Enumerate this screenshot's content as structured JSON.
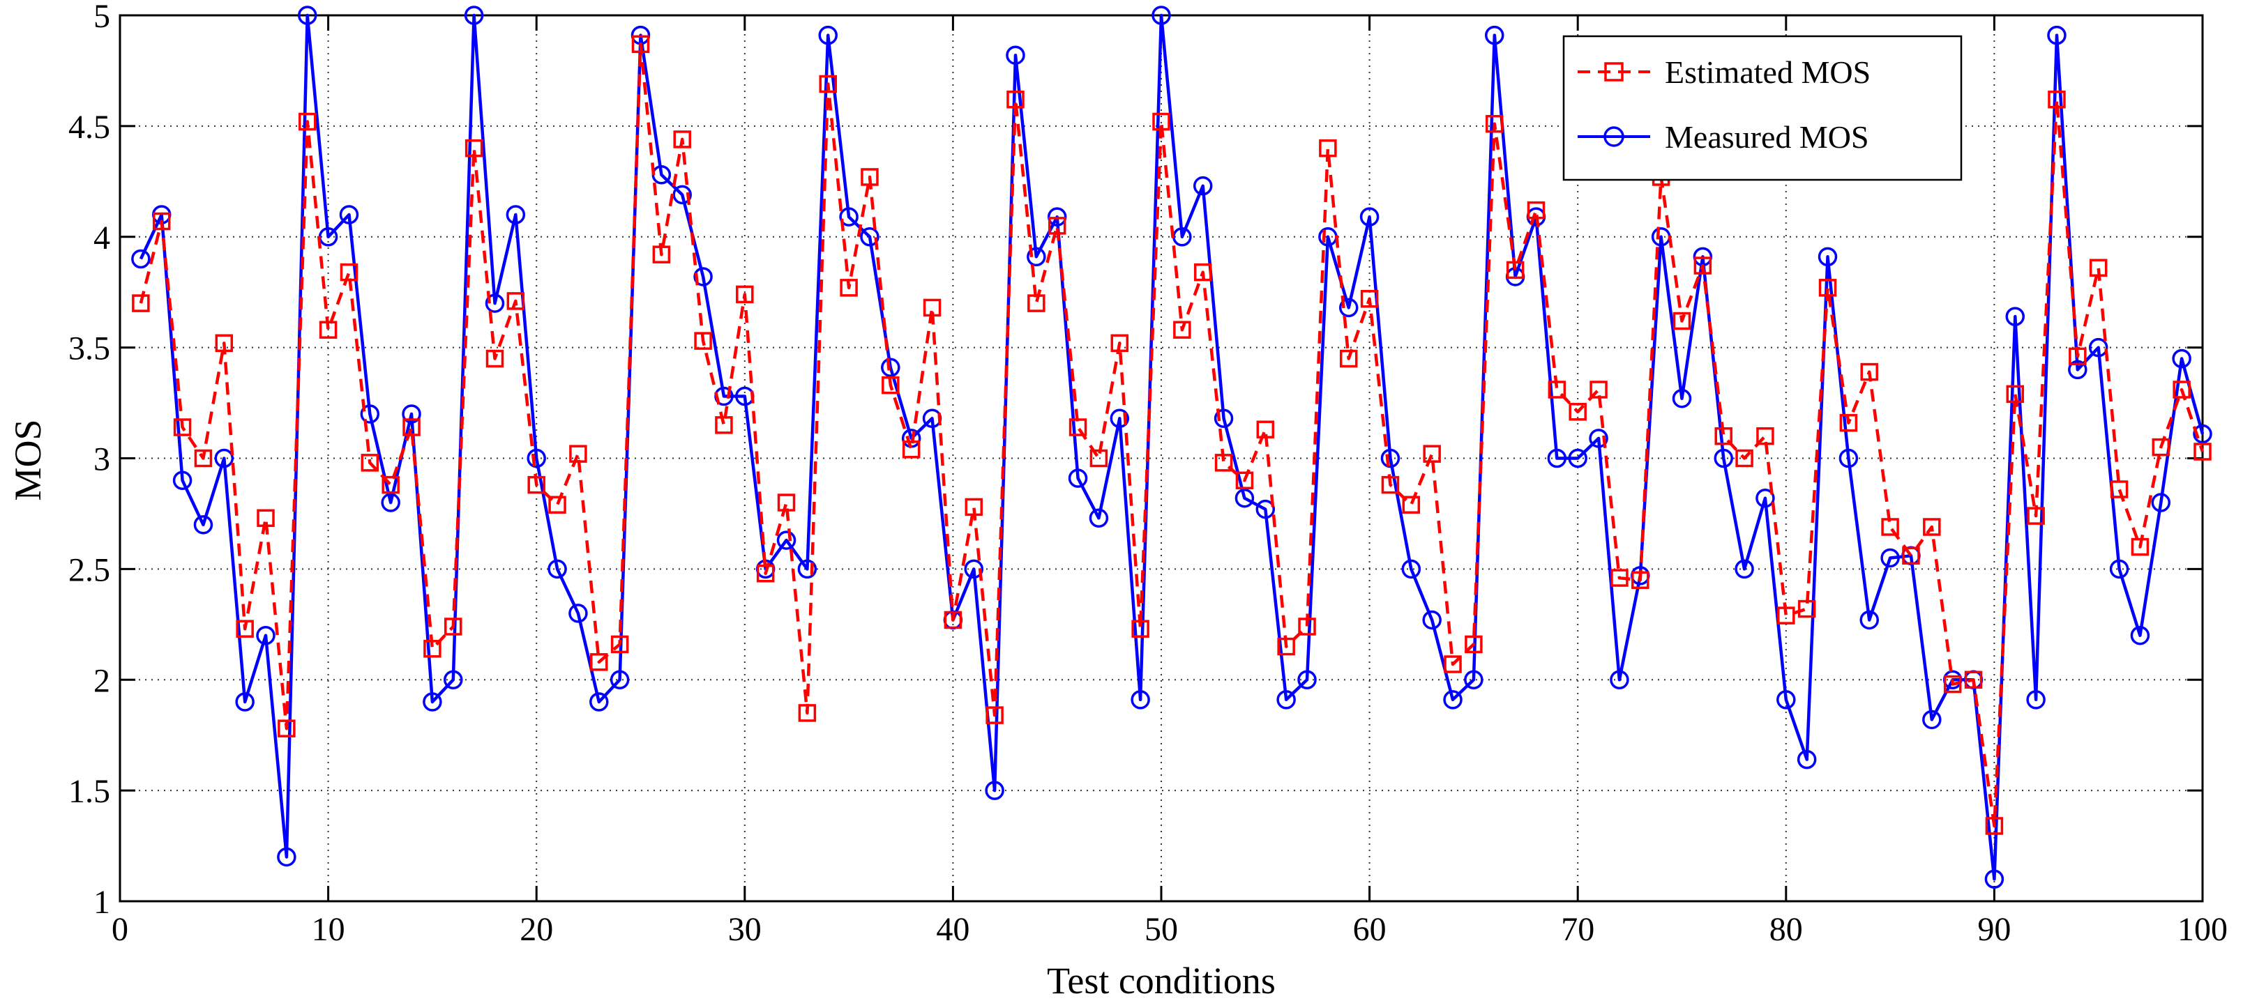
{
  "chart_data": {
    "type": "line",
    "title": "",
    "xlabel": "Test conditions",
    "ylabel": "MOS",
    "xlim": [
      0,
      100
    ],
    "ylim": [
      1,
      5
    ],
    "grid": true,
    "legend_position": "top-right",
    "xticks": [
      0,
      10,
      20,
      30,
      40,
      50,
      60,
      70,
      80,
      90,
      100
    ],
    "yticks": [
      1,
      1.5,
      2,
      2.5,
      3,
      3.5,
      4,
      4.5,
      5
    ],
    "x": [
      1,
      2,
      3,
      4,
      5,
      6,
      7,
      8,
      9,
      10,
      11,
      12,
      13,
      14,
      15,
      16,
      17,
      18,
      19,
      20,
      21,
      22,
      23,
      24,
      25,
      26,
      27,
      28,
      29,
      30,
      31,
      32,
      33,
      34,
      35,
      36,
      37,
      38,
      39,
      40,
      41,
      42,
      43,
      44,
      45,
      46,
      47,
      48,
      49,
      50,
      51,
      52,
      53,
      54,
      55,
      56,
      57,
      58,
      59,
      60,
      61,
      62,
      63,
      64,
      65,
      66,
      67,
      68,
      69,
      70,
      71,
      72,
      73,
      74,
      75,
      76,
      77,
      78,
      79,
      80,
      81,
      82,
      83,
      84,
      85,
      86,
      87,
      88,
      89,
      90,
      91,
      92,
      93,
      94,
      95,
      96,
      97,
      98,
      99,
      100
    ],
    "series": [
      {
        "name": "Estimated MOS",
        "color": "#ff0000",
        "line_style": "dashed",
        "marker": "square",
        "values": [
          3.7,
          4.07,
          3.14,
          3.0,
          3.52,
          2.23,
          2.73,
          1.78,
          4.52,
          3.58,
          3.84,
          2.98,
          2.88,
          3.14,
          2.14,
          2.24,
          4.4,
          3.45,
          3.71,
          2.88,
          2.79,
          3.02,
          2.08,
          2.16,
          4.87,
          3.92,
          4.44,
          3.53,
          3.15,
          3.74,
          2.48,
          2.8,
          1.85,
          4.69,
          3.77,
          4.27,
          3.33,
          3.04,
          3.68,
          2.27,
          2.78,
          1.84,
          4.62,
          3.7,
          4.05,
          3.14,
          3.0,
          3.52,
          2.23,
          4.52,
          3.58,
          3.84,
          2.98,
          2.9,
          3.13,
          2.15,
          2.24,
          4.4,
          3.45,
          3.72,
          2.88,
          2.79,
          3.02,
          2.07,
          2.16,
          4.51,
          3.85,
          4.12,
          3.31,
          3.21,
          3.31,
          2.46,
          2.45,
          4.27,
          3.62,
          3.87,
          3.1,
          3.0,
          3.1,
          2.29,
          2.32,
          3.77,
          3.16,
          3.39,
          2.69,
          2.56,
          2.69,
          1.98,
          2.0,
          1.34,
          3.29,
          2.74,
          4.62,
          3.46,
          3.86,
          2.86,
          2.6,
          3.05,
          3.31,
          3.03
        ]
      },
      {
        "name": "Measured MOS",
        "color": "#0000ff",
        "line_style": "solid",
        "marker": "circle",
        "values": [
          3.9,
          4.1,
          2.9,
          2.7,
          3.0,
          1.9,
          2.2,
          1.2,
          5.0,
          4.0,
          4.1,
          3.2,
          2.8,
          3.2,
          1.9,
          2.0,
          5.0,
          3.7,
          4.1,
          3.0,
          2.5,
          2.3,
          1.9,
          2.0,
          4.91,
          4.28,
          4.19,
          3.82,
          3.28,
          3.28,
          2.5,
          2.63,
          2.5,
          4.91,
          4.09,
          4.0,
          3.41,
          3.09,
          3.18,
          2.27,
          2.5,
          1.5,
          4.82,
          3.91,
          4.09,
          2.91,
          2.73,
          3.18,
          1.91,
          5.0,
          4.0,
          4.23,
          3.18,
          2.82,
          2.77,
          1.91,
          2.0,
          4.0,
          3.68,
          4.09,
          3.0,
          2.5,
          2.27,
          1.91,
          2.0,
          4.91,
          3.82,
          4.09,
          3.0,
          3.0,
          3.09,
          2.0,
          2.47,
          4.0,
          3.27,
          3.91,
          3.0,
          2.5,
          2.82,
          1.91,
          1.64,
          3.91,
          3.0,
          2.27,
          2.55,
          2.56,
          1.82,
          2.0,
          2.0,
          1.1,
          3.64,
          1.91,
          4.91,
          3.4,
          3.5,
          2.5,
          2.2,
          2.8,
          3.45,
          3.11
        ]
      }
    ]
  }
}
